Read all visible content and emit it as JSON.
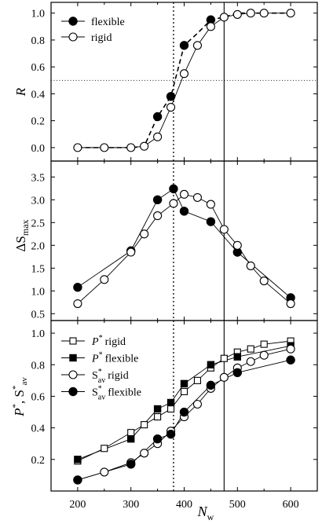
{
  "chart_data": [
    {
      "type": "line",
      "panel": "top",
      "ylabel": "R",
      "xlim": [
        150,
        650
      ],
      "ylim": [
        -0.1,
        1.08
      ],
      "yticks": [
        0.0,
        0.2,
        0.4,
        0.6,
        0.8,
        1.0
      ],
      "ytick_labels": [
        "0.0",
        "0.2",
        "0.4",
        "0.6",
        "0.8",
        "1.0"
      ],
      "legend_position": "top-left",
      "reference_lines": {
        "vertical_dotted_x": 380,
        "vertical_solid_x": 475,
        "horizontal_dotted_y": 0.5
      },
      "series": [
        {
          "name": "flexible",
          "marker": "filled-circle",
          "line": "dashed",
          "x": [
            200,
            250,
            300,
            325,
            350,
            375,
            400,
            425,
            450,
            475,
            500,
            525,
            550,
            600
          ],
          "y": [
            0.0,
            0.0,
            0.0,
            0.01,
            0.23,
            0.38,
            0.76,
            0.85,
            0.95,
            0.97,
            1.0,
            1.0,
            1.0,
            1.0
          ],
          "marker_x": [
            350,
            375,
            400,
            450
          ],
          "marker_y": [
            0.23,
            0.38,
            0.76,
            0.95
          ]
        },
        {
          "name": "rigid",
          "marker": "open-circle",
          "line": "solid",
          "x": [
            200,
            250,
            300,
            325,
            350,
            375,
            400,
            425,
            450,
            475,
            500,
            525,
            550,
            600
          ],
          "y": [
            0.0,
            0.0,
            0.0,
            0.01,
            0.08,
            0.3,
            0.55,
            0.76,
            0.9,
            0.97,
            0.99,
            1.0,
            1.0,
            1.0
          ]
        }
      ]
    },
    {
      "type": "line",
      "panel": "middle",
      "ylabel": "ΔS",
      "ylabel_sub": "max",
      "xlim": [
        150,
        650
      ],
      "ylim": [
        0.35,
        3.85
      ],
      "yticks": [
        0.5,
        1.0,
        1.5,
        2.0,
        2.5,
        3.0,
        3.5
      ],
      "ytick_labels": [
        "0.5",
        "1.0",
        "1.5",
        "2.0",
        "2.5",
        "3.0",
        "3.5"
      ],
      "series": [
        {
          "name": "flexible",
          "marker": "filled-circle",
          "x": [
            200,
            300,
            350,
            380,
            400,
            450,
            500,
            600
          ],
          "y": [
            1.08,
            1.88,
            3.0,
            3.24,
            2.75,
            2.52,
            1.85,
            0.85
          ]
        },
        {
          "name": "rigid",
          "marker": "open-circle",
          "x": [
            200,
            250,
            300,
            325,
            350,
            380,
            400,
            425,
            450,
            475,
            500,
            525,
            550,
            600
          ],
          "y": [
            0.72,
            1.25,
            1.85,
            2.25,
            2.65,
            2.92,
            3.12,
            3.05,
            2.9,
            2.35,
            2.0,
            1.55,
            1.22,
            0.72
          ]
        }
      ]
    },
    {
      "type": "line",
      "panel": "bottom",
      "xlabel": "N",
      "xlabel_sub": "w",
      "ylabel": "P",
      "xlim": [
        150,
        650
      ],
      "xticks": [
        200,
        300,
        400,
        500,
        600
      ],
      "xtick_labels": [
        "200",
        "300",
        "400",
        "500",
        "600"
      ],
      "ylim": [
        0.0,
        1.08
      ],
      "yticks": [
        0.2,
        0.4,
        0.6,
        0.8,
        1.0
      ],
      "ytick_labels": [
        "0.2",
        "0.4",
        "0.6",
        "0.8",
        "1.0"
      ],
      "legend_position": "top-left",
      "series": [
        {
          "name": "P* rigid",
          "legend_main": "P",
          "legend_tail": "rigid",
          "marker": "open-square",
          "x": [
            200,
            250,
            300,
            325,
            350,
            375,
            400,
            425,
            450,
            475,
            500,
            525,
            550,
            600
          ],
          "y": [
            0.19,
            0.27,
            0.37,
            0.42,
            0.47,
            0.52,
            0.63,
            0.7,
            0.78,
            0.84,
            0.88,
            0.9,
            0.93,
            0.95
          ]
        },
        {
          "name": "P* flexible",
          "legend_main": "P",
          "legend_tail": "flexible",
          "marker": "filled-square",
          "x": [
            200,
            300,
            350,
            375,
            400,
            450,
            500,
            600
          ],
          "y": [
            0.2,
            0.33,
            0.52,
            0.56,
            0.68,
            0.8,
            0.85,
            0.92
          ]
        },
        {
          "name": "S*av rigid",
          "legend_main": "S",
          "legend_tail": "rigid",
          "marker": "open-circle",
          "x": [
            200,
            250,
            300,
            325,
            350,
            375,
            400,
            425,
            450,
            475,
            500,
            525,
            550,
            600
          ],
          "y": [
            0.07,
            0.12,
            0.18,
            0.24,
            0.3,
            0.38,
            0.47,
            0.55,
            0.65,
            0.72,
            0.78,
            0.82,
            0.86,
            0.9
          ]
        },
        {
          "name": "S*av flexible",
          "legend_main": "S",
          "legend_tail": "flexible",
          "marker": "filled-circle",
          "x": [
            200,
            300,
            350,
            375,
            400,
            450,
            500,
            600
          ],
          "y": [
            0.07,
            0.17,
            0.33,
            0.36,
            0.5,
            0.67,
            0.75,
            0.83
          ]
        }
      ]
    }
  ],
  "text": {
    "ylabel_top": "R",
    "ylabel_mid_main": "ΔS",
    "ylabel_mid_sub": "max",
    "ylabel_bot_p": "P",
    "ylabel_bot_comma": ", S",
    "ylabel_bot_sub": "av",
    "sup_star": "*",
    "xlabel_main": "N",
    "xlabel_sub": "w",
    "legend_top_flexible": "flexible",
    "legend_top_rigid": "rigid",
    "sub_av": "av"
  }
}
